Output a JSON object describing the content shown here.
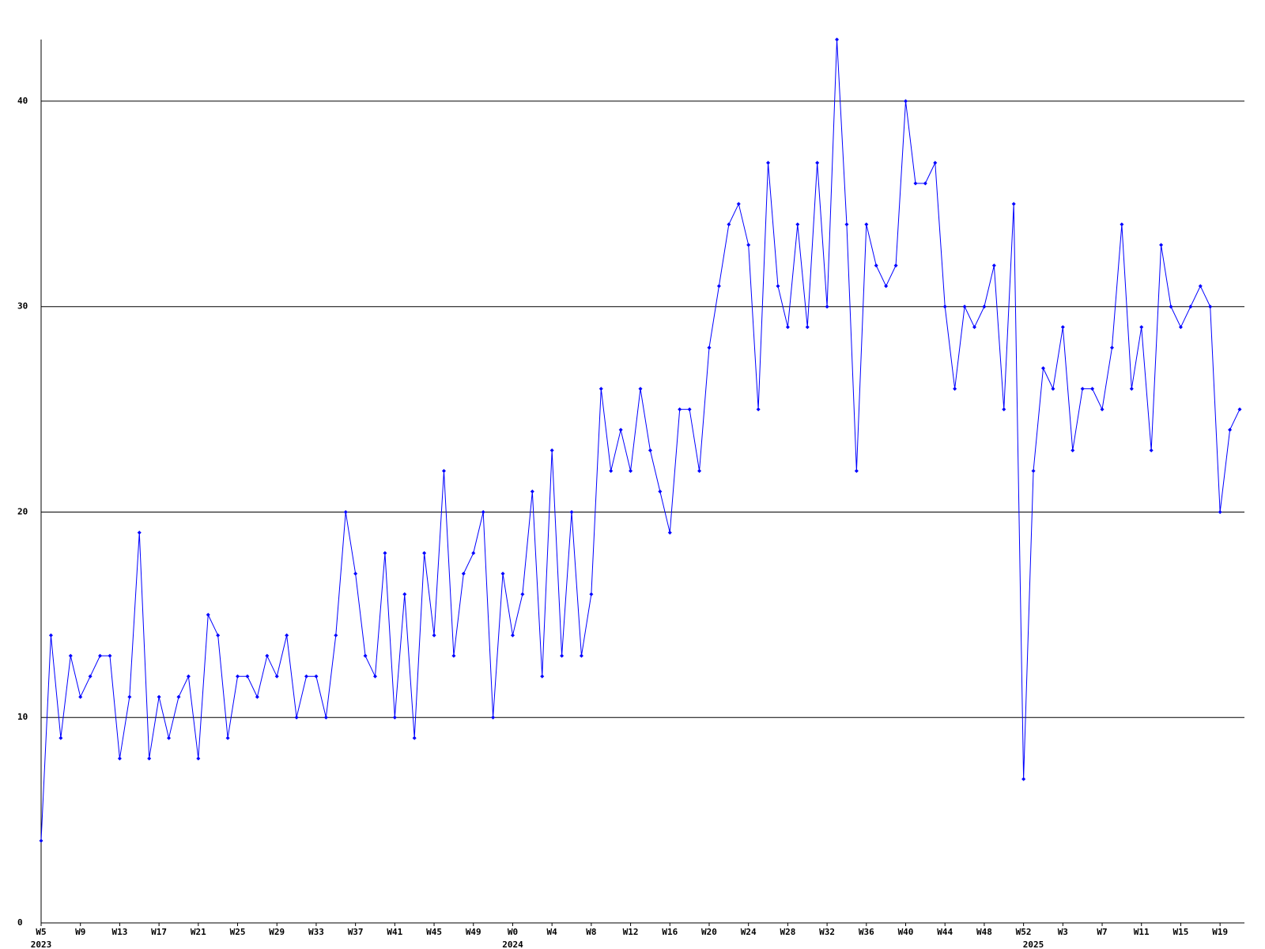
{
  "chart_data": {
    "type": "line",
    "color": "#0000ff",
    "grid": true,
    "ylim": [
      0,
      43
    ],
    "yticks": [
      0,
      10,
      20,
      30,
      40
    ],
    "categories": [
      "W5",
      null,
      null,
      null,
      "W9",
      null,
      null,
      null,
      "W13",
      null,
      null,
      null,
      "W17",
      null,
      null,
      null,
      "W21",
      null,
      null,
      null,
      "W25",
      null,
      null,
      null,
      "W29",
      null,
      null,
      null,
      "W33",
      null,
      null,
      null,
      "W37",
      null,
      null,
      null,
      "W41",
      null,
      null,
      null,
      "W45",
      null,
      null,
      null,
      "W49",
      null,
      null,
      null,
      "W0",
      null,
      null,
      null,
      "W4",
      null,
      null,
      null,
      "W8",
      null,
      null,
      null,
      "W12",
      null,
      null,
      null,
      "W16",
      null,
      null,
      null,
      "W20",
      null,
      null,
      null,
      "W24",
      null,
      null,
      null,
      "W28",
      null,
      null,
      null,
      "W32",
      null,
      null,
      null,
      "W36",
      null,
      null,
      null,
      "W40",
      null,
      null,
      null,
      "W44",
      null,
      null,
      null,
      "W48",
      null,
      null,
      null,
      "W52",
      null,
      null,
      null,
      "W3",
      null,
      null,
      null,
      "W7",
      null,
      null,
      null,
      "W11",
      null,
      null,
      null,
      "W15",
      null,
      null,
      null,
      "W19",
      null,
      null
    ],
    "year_labels": [
      {
        "label": "2023",
        "at": 0
      },
      {
        "label": "2024",
        "at": 48
      },
      {
        "label": "2025",
        "at": 101
      }
    ],
    "values": [
      4,
      14,
      9,
      13,
      11,
      12,
      13,
      13,
      8,
      11,
      19,
      8,
      11,
      9,
      11,
      12,
      8,
      15,
      14,
      9,
      12,
      12,
      11,
      13,
      12,
      14,
      10,
      12,
      12,
      10,
      14,
      20,
      17,
      13,
      12,
      18,
      10,
      16,
      9,
      18,
      14,
      22,
      13,
      17,
      18,
      20,
      10,
      17,
      14,
      16,
      21,
      12,
      23,
      13,
      20,
      13,
      16,
      26,
      22,
      24,
      22,
      26,
      23,
      21,
      19,
      25,
      25,
      22,
      28,
      31,
      34,
      35,
      33,
      25,
      37,
      31,
      29,
      34,
      29,
      37,
      30,
      43,
      34,
      22,
      34,
      32,
      31,
      32,
      40,
      36,
      36,
      37,
      30,
      26,
      30,
      29,
      30,
      32,
      25,
      35,
      7,
      22,
      27,
      26,
      29,
      23,
      26,
      26,
      25,
      28,
      34,
      26,
      29,
      23,
      33,
      30,
      29,
      30,
      31,
      30,
      20,
      24,
      25
    ]
  }
}
